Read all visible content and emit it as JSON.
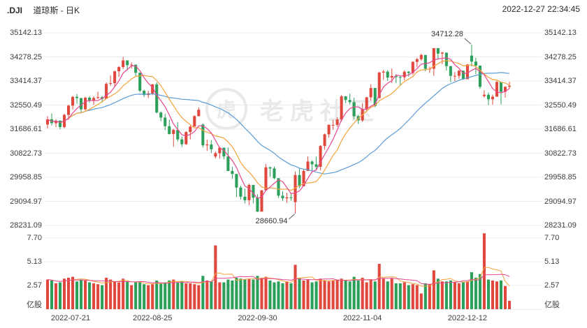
{
  "header": {
    "symbol": ".DJI",
    "title": "道琼斯 - 日K",
    "timestamp": "2022-12-27 22:34:45"
  },
  "watermark": {
    "text": "老虎社区",
    "logo_glyph": "虎"
  },
  "annotations": {
    "high": "34712.28",
    "low": "28660.94"
  },
  "axes": {
    "price_labels": [
      "35142.13",
      "34278.25",
      "33414.37",
      "32550.49",
      "31686.61",
      "30822.73",
      "29958.85",
      "29094.97",
      "28231.09"
    ],
    "volume_labels": [
      "7.70",
      "5.13",
      "2.57"
    ],
    "volume_unit": "亿股",
    "date_labels": [
      {
        "text": "2022-07-21",
        "index": 0
      },
      {
        "text": "2022-08-25",
        "index": 25
      },
      {
        "text": "2022-09-30",
        "index": 50
      },
      {
        "text": "2022-11-04",
        "index": 75
      },
      {
        "text": "2022-12-12",
        "index": 100
      }
    ]
  },
  "colors": {
    "up": "#e0483e",
    "down": "#2ca05a",
    "ma5": "#e5468f",
    "ma10": "#f2a33c",
    "ma30": "#5b9bd5",
    "grid": "#ebebeb",
    "axis_text": "#3d3d3d",
    "annotation": "#555555",
    "watermark": "#dcdcdc"
  },
  "chart_data": {
    "type": "candlestick+volume",
    "title": ".DJI 道琼斯 日K",
    "price_ylim": [
      28231.09,
      35142.13
    ],
    "volume_ylim": [
      0,
      8.3
    ],
    "volume_unit": "亿股",
    "high_annotation": {
      "value": 34712.28,
      "date": "2022-12-13"
    },
    "low_annotation": {
      "value": 28660.94,
      "date": "2022-10-13"
    },
    "ma_windows": [
      5,
      10,
      30
    ],
    "legend_position": "none",
    "grid": true,
    "columns": [
      "date",
      "open",
      "high",
      "low",
      "close",
      "volume"
    ],
    "rows": [
      [
        "2022-07-21",
        31850,
        32150,
        31711,
        32036.9,
        3.2
      ],
      [
        "2022-07-22",
        32037,
        32246,
        31817,
        31899.29,
        3.1
      ],
      [
        "2022-07-25",
        31899,
        32040,
        31756,
        31990.04,
        2.8
      ],
      [
        "2022-07-26",
        31990,
        31996,
        31680,
        31761.54,
        2.9
      ],
      [
        "2022-07-27",
        31762,
        32238,
        31715,
        32197.59,
        3.3
      ],
      [
        "2022-07-28",
        32198,
        32563,
        32016,
        32529.63,
        3.4
      ],
      [
        "2022-07-29",
        32530,
        32876,
        32388,
        32845.13,
        3.5
      ],
      [
        "2022-08-01",
        32845,
        32946,
        32601,
        32798.4,
        3.0
      ],
      [
        "2022-08-02",
        32798,
        32814,
        32276,
        32396.17,
        3.2
      ],
      [
        "2022-08-03",
        32396,
        32846,
        32354,
        32812.5,
        3.1
      ],
      [
        "2022-08-04",
        32813,
        32870,
        32633,
        32726.82,
        2.9
      ],
      [
        "2022-08-05",
        32727,
        32864,
        32557,
        32803.47,
        2.8
      ],
      [
        "2022-08-08",
        32803,
        33034,
        32762,
        32832.54,
        2.7
      ],
      [
        "2022-08-09",
        32833,
        32874,
        32636,
        32774.41,
        2.6
      ],
      [
        "2022-08-10",
        32774,
        33365,
        32770,
        33309.51,
        3.4
      ],
      [
        "2022-08-11",
        33310,
        33608,
        33237,
        33336.67,
        3.2
      ],
      [
        "2022-08-12",
        33337,
        33788,
        33201,
        33761.05,
        3.0
      ],
      [
        "2022-08-15",
        33761,
        33944,
        33562,
        33912.44,
        2.9
      ],
      [
        "2022-08-16",
        33912,
        34281,
        33842,
        34152.01,
        3.3
      ],
      [
        "2022-08-17",
        34152,
        34156,
        33795,
        33980.32,
        3.0
      ],
      [
        "2022-08-18",
        33980,
        34082,
        33862,
        33999.04,
        2.6
      ],
      [
        "2022-08-19",
        33999,
        34000,
        33580,
        33706.74,
        2.9
      ],
      [
        "2022-08-22",
        33707,
        33707,
        33003,
        33063.61,
        2.9
      ],
      [
        "2022-08-23",
        33064,
        33104,
        32842,
        32909.59,
        2.7
      ],
      [
        "2022-08-24",
        32910,
        33063,
        32800,
        32969.23,
        2.6
      ],
      [
        "2022-08-25",
        32969,
        33308,
        32903,
        33291.78,
        2.7
      ],
      [
        "2022-08-26",
        33292,
        33364,
        32253,
        32283.4,
        3.1
      ],
      [
        "2022-08-29",
        32283,
        32325,
        31972,
        32098.99,
        2.8
      ],
      [
        "2022-08-30",
        32099,
        32238,
        31653,
        31790.87,
        2.9
      ],
      [
        "2022-08-31",
        31791,
        32027,
        31490,
        31510.43,
        3.1
      ],
      [
        "2022-09-01",
        31510,
        31700,
        31048,
        31656.42,
        3.2
      ],
      [
        "2022-09-02",
        31656,
        31936,
        31244,
        31318.44,
        2.9
      ],
      [
        "2022-09-06",
        31318,
        31422,
        31048,
        31145.3,
        3.0
      ],
      [
        "2022-09-07",
        31145,
        31611,
        31120,
        31581.28,
        2.8
      ],
      [
        "2022-09-08",
        31581,
        31818,
        31320,
        31774.52,
        2.8
      ],
      [
        "2022-09-09",
        31775,
        32189,
        31774,
        32151.71,
        2.7
      ],
      [
        "2022-09-12",
        32152,
        32467,
        32140,
        32381.34,
        2.6
      ],
      [
        "2022-09-13",
        31850,
        31885,
        31026,
        31104.97,
        3.6
      ],
      [
        "2022-09-14",
        31105,
        31305,
        30905,
        31135.09,
        3.1
      ],
      [
        "2022-09-15",
        31135,
        31290,
        30830,
        30961.82,
        3.0
      ],
      [
        "2022-09-16",
        30700,
        30880,
        30639,
        30822.42,
        6.9
      ],
      [
        "2022-09-19",
        30822,
        31050,
        30630,
        31019.68,
        2.9
      ],
      [
        "2022-09-20",
        31020,
        31020,
        30602,
        30706.23,
        2.9
      ],
      [
        "2022-09-21",
        30706,
        31029,
        30180,
        30183.78,
        3.2
      ],
      [
        "2022-09-22",
        30184,
        30336,
        29900,
        30076.68,
        3.1
      ],
      [
        "2022-09-23",
        30077,
        30077,
        29250,
        29590.41,
        3.4
      ],
      [
        "2022-09-26",
        29590,
        29655,
        29161,
        29260.81,
        3.3
      ],
      [
        "2022-09-27",
        29261,
        29551,
        29020,
        29134.99,
        3.2
      ],
      [
        "2022-09-28",
        29135,
        29731,
        28958,
        29683.74,
        3.3
      ],
      [
        "2022-09-29",
        29684,
        29685,
        29024,
        29225.61,
        3.2
      ],
      [
        "2022-09-30",
        29226,
        29344,
        28715,
        28725.51,
        3.6
      ],
      [
        "2022-10-03",
        28726,
        29500,
        28726,
        29490.89,
        3.4
      ],
      [
        "2022-10-04",
        29491,
        30428,
        29491,
        30316.32,
        3.5
      ],
      [
        "2022-10-05",
        30316,
        30346,
        29974,
        30273.87,
        3.1
      ],
      [
        "2022-10-06",
        30274,
        30342,
        29886,
        29926.94,
        2.9
      ],
      [
        "2022-10-07",
        29927,
        29927,
        29216,
        29296.79,
        3.0
      ],
      [
        "2022-10-10",
        29297,
        29460,
        29110,
        29202.88,
        2.8
      ],
      [
        "2022-10-11",
        29203,
        29400,
        29043,
        29239.19,
        3.0
      ],
      [
        "2022-10-12",
        29239,
        29385,
        29120,
        29210.85,
        2.8
      ],
      [
        "2022-10-13",
        29067,
        30168,
        28660.94,
        30038.72,
        4.8
      ],
      [
        "2022-10-14",
        30039,
        30270,
        29568,
        29634.83,
        3.4
      ],
      [
        "2022-10-17",
        29635,
        30240,
        29635,
        30185.82,
        3.1
      ],
      [
        "2022-10-18",
        30186,
        30704,
        30186,
        30523.8,
        3.2
      ],
      [
        "2022-10-19",
        30524,
        30560,
        30200,
        30423.81,
        2.9
      ],
      [
        "2022-10-20",
        30424,
        30700,
        30236,
        30333.59,
        3.0
      ],
      [
        "2022-10-21",
        30334,
        31118,
        30206,
        31082.56,
        3.3
      ],
      [
        "2022-10-24",
        31083,
        31528,
        30945,
        31499.62,
        3.1
      ],
      [
        "2022-10-25",
        31500,
        31862,
        31380,
        31836.74,
        3.0
      ],
      [
        "2022-10-26",
        31837,
        32022,
        31663,
        31839.11,
        3.1
      ],
      [
        "2022-10-27",
        31839,
        32115,
        31770,
        32033.28,
        3.2
      ],
      [
        "2022-10-28",
        32033,
        32907,
        31956,
        32861.8,
        3.3
      ],
      [
        "2022-10-31",
        32862,
        32874,
        32620,
        32732.95,
        3.1
      ],
      [
        "2022-11-01",
        32733,
        32952,
        32574,
        32653.2,
        3.0
      ],
      [
        "2022-11-02",
        32653,
        32813,
        32048,
        32147.76,
        3.5
      ],
      [
        "2022-11-03",
        32148,
        32190,
        31875,
        32001.25,
        3.1
      ],
      [
        "2022-11-04",
        32001,
        32620,
        31950,
        32403.22,
        3.4
      ],
      [
        "2022-11-07",
        32403,
        32846,
        32302,
        32827.0,
        2.9
      ],
      [
        "2022-11-08",
        32827,
        33298,
        32708,
        33160.83,
        3.2
      ],
      [
        "2022-11-09",
        33161,
        33161,
        32475,
        32513.94,
        3.0
      ],
      [
        "2022-11-10",
        32796,
        33747,
        32796,
        33715.37,
        4.9
      ],
      [
        "2022-11-11",
        33715,
        33810,
        33454,
        33747.86,
        3.3
      ],
      [
        "2022-11-14",
        33748,
        33809,
        33418,
        33536.7,
        3.0
      ],
      [
        "2022-11-15",
        33537,
        33860,
        33340,
        33592.92,
        3.3
      ],
      [
        "2022-11-16",
        33593,
        33656,
        33336,
        33553.83,
        2.8
      ],
      [
        "2022-11-17",
        33554,
        33594,
        33240,
        33546.32,
        2.8
      ],
      [
        "2022-11-18",
        33546,
        33798,
        33440,
        33745.69,
        2.9
      ],
      [
        "2022-11-21",
        33746,
        33764,
        33573,
        33700.28,
        2.6
      ],
      [
        "2022-11-22",
        33700,
        34124,
        33640,
        34098.1,
        2.7
      ],
      [
        "2022-11-23",
        34098,
        34246,
        33920,
        34194.06,
        2.6
      ],
      [
        "2022-11-25",
        34194,
        34392,
        34133,
        34347.03,
        1.7
      ],
      [
        "2022-11-28",
        34347,
        34347,
        33760,
        33849.46,
        2.8
      ],
      [
        "2022-11-29",
        33849,
        33928,
        33706,
        33852.53,
        2.7
      ],
      [
        "2022-11-30",
        33853,
        34595,
        33600,
        34589.77,
        4.2
      ],
      [
        "2022-12-01",
        34590,
        34595,
        34185,
        34395.01,
        3.3
      ],
      [
        "2022-12-02",
        34395,
        34461,
        34019,
        34429.88,
        3.0
      ],
      [
        "2022-12-05",
        34430,
        34430,
        33788,
        33947.1,
        3.0
      ],
      [
        "2022-12-06",
        33947,
        33947,
        33371,
        33596.34,
        3.1
      ],
      [
        "2022-12-07",
        33596,
        33735,
        33410,
        33597.92,
        2.9
      ],
      [
        "2022-12-08",
        33598,
        33818,
        33497,
        33781.48,
        2.8
      ],
      [
        "2022-12-09",
        33781,
        33791,
        33451,
        33476.46,
        2.9
      ],
      [
        "2022-12-12",
        33476,
        34025,
        33476,
        34005.04,
        3.0
      ],
      [
        "2022-12-13",
        34325,
        34712.28,
        33940,
        34108.64,
        4.0
      ],
      [
        "2022-12-14",
        34109,
        34246,
        33665,
        33966.35,
        3.4
      ],
      [
        "2022-12-15",
        33966,
        33966,
        33136,
        33202.22,
        3.8
      ],
      [
        "2022-12-16",
        32870,
        33080,
        32818,
        32920.46,
        8.2
      ],
      [
        "2022-12-19",
        32920,
        33000,
        32550,
        32757.54,
        3.2
      ],
      [
        "2022-12-20",
        32758,
        32925,
        32564,
        32849.74,
        3.1
      ],
      [
        "2022-12-21",
        32850,
        33418,
        32850,
        33376.48,
        3.0
      ],
      [
        "2022-12-22",
        33376,
        33376,
        32573,
        33027.49,
        3.1
      ],
      [
        "2022-12-23",
        33027,
        33226,
        32814,
        33203.93,
        2.5
      ],
      [
        "2022-12-27",
        33204,
        33387,
        33130,
        33241.56,
        0.9
      ]
    ]
  }
}
